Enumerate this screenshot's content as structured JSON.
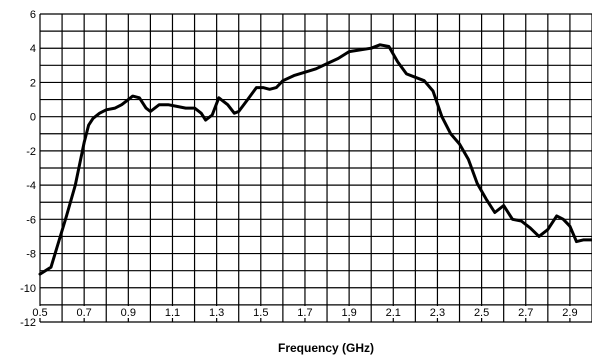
{
  "chart_data": {
    "type": "line",
    "title": "",
    "xlabel": "Frequency (GHz)",
    "ylabel": "",
    "xlim": [
      0.5,
      3.0
    ],
    "ylim": [
      -12,
      6
    ],
    "grid": true,
    "legend": "none",
    "x_ticks": [
      0.5,
      0.7,
      0.9,
      1.1,
      1.3,
      1.5,
      1.7,
      1.9,
      2.1,
      2.3,
      2.5,
      2.7,
      2.9
    ],
    "x_tick_labels": [
      "0.5",
      "0.7",
      "0.9",
      "1.1",
      "1.3",
      "1.5",
      "1.7",
      "1.9",
      "2.1",
      "2.3",
      "2.5",
      "2.7",
      "2.9"
    ],
    "y_ticks": [
      6,
      4,
      2,
      0,
      -2,
      -4,
      -6,
      -8,
      -10,
      -12
    ],
    "y_tick_labels": [
      "6",
      "4",
      "2",
      "0",
      "-2",
      "-4",
      "-6",
      "-8",
      "-10",
      "-12"
    ],
    "series": [
      {
        "color": "#000000",
        "x": [
          0.5,
          0.55,
          0.58,
          0.62,
          0.66,
          0.7,
          0.72,
          0.74,
          0.77,
          0.8,
          0.84,
          0.87,
          0.9,
          0.92,
          0.95,
          0.98,
          1.0,
          1.04,
          1.08,
          1.12,
          1.16,
          1.2,
          1.23,
          1.25,
          1.28,
          1.31,
          1.35,
          1.38,
          1.4,
          1.44,
          1.48,
          1.51,
          1.54,
          1.57,
          1.6,
          1.65,
          1.7,
          1.75,
          1.8,
          1.85,
          1.9,
          1.95,
          2.0,
          2.04,
          2.08,
          2.12,
          2.16,
          2.2,
          2.24,
          2.28,
          2.32,
          2.36,
          2.4,
          2.44,
          2.48,
          2.52,
          2.56,
          2.6,
          2.64,
          2.68,
          2.72,
          2.76,
          2.8,
          2.84,
          2.87,
          2.9,
          2.93,
          2.96,
          3.0
        ],
        "y": [
          -9.2,
          -8.8,
          -7.5,
          -5.8,
          -4.0,
          -1.5,
          -0.5,
          -0.1,
          0.2,
          0.4,
          0.5,
          0.7,
          1.0,
          1.2,
          1.1,
          0.5,
          0.3,
          0.7,
          0.7,
          0.6,
          0.5,
          0.5,
          0.2,
          -0.2,
          0.1,
          1.1,
          0.7,
          0.2,
          0.3,
          1.0,
          1.7,
          1.7,
          1.6,
          1.7,
          2.1,
          2.4,
          2.6,
          2.8,
          3.1,
          3.4,
          3.8,
          3.9,
          4.0,
          4.2,
          4.1,
          3.2,
          2.5,
          2.3,
          2.1,
          1.5,
          0.0,
          -1.0,
          -1.6,
          -2.5,
          -3.9,
          -4.8,
          -5.6,
          -5.2,
          -6.0,
          -6.1,
          -6.5,
          -7.0,
          -6.6,
          -5.8,
          -6.0,
          -6.4,
          -7.3,
          -7.2,
          -7.2
        ]
      }
    ]
  }
}
